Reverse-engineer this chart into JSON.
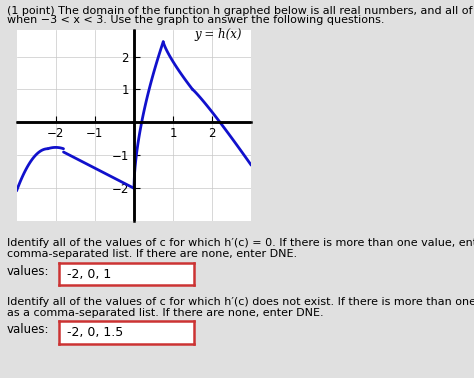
{
  "header_line1": "(1 point) The domain of the function h graphed below is all real numbers, and all of its extreme values occur",
  "header_line2": "when −3 < x < 3. Use the graph to answer the following questions.",
  "graph_label": "y = h(x)",
  "xlim": [
    -3.0,
    3.0
  ],
  "ylim": [
    -2.5,
    2.8
  ],
  "xticks": [
    -2,
    -1,
    1,
    2
  ],
  "yticks": [
    -2,
    -1,
    1,
    2
  ],
  "grid_xticks": [
    -3,
    -2,
    -1,
    0,
    1,
    2,
    3
  ],
  "grid_yticks": [
    -3,
    -2,
    -1,
    0,
    1,
    2
  ],
  "curve_color": "#1111cc",
  "curve_lw": 2.0,
  "bg_color": "#e0e0e0",
  "graph_bg": "#ffffff",
  "q1_text_line1": "Identify all of the values of c for which h′(c) = 0. If there is more than one value, enter the values as a",
  "q1_text_line2": "comma-separated list. If there are none, enter DNE.",
  "q1_label": "values:",
  "q1_answer": "-2, 0, 1",
  "q2_text_line1": "Identify all of the values of c for which h′(c) does not exist. If there is more than one value, enter the values",
  "q2_text_line2": "as a comma-separated list. If there are none, enter DNE.",
  "q2_label": "values:",
  "q2_answer": "-2, 0, 1.5",
  "box_edge_color": "#cc3333",
  "text_fontsize": 8.0,
  "label_fontsize": 8.5,
  "answer_fontsize": 9.0
}
